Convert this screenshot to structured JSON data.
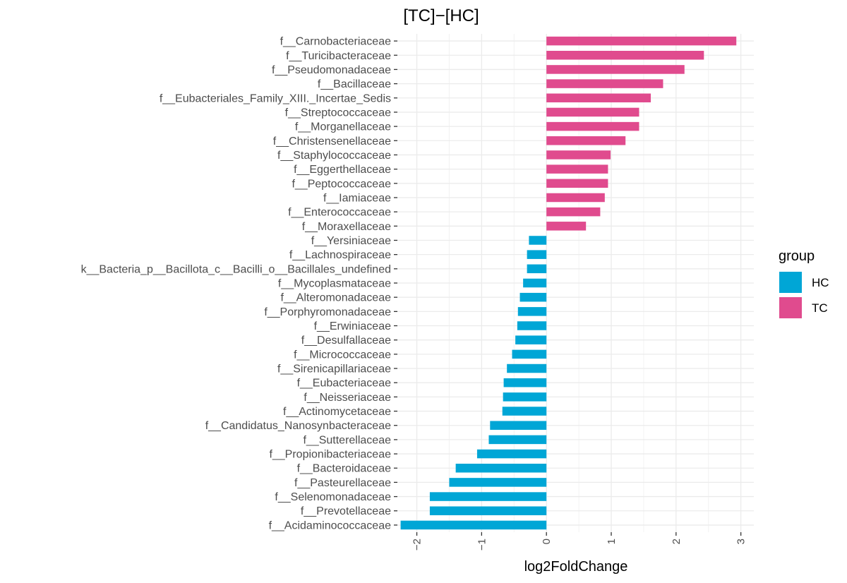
{
  "chart_data": {
    "type": "bar",
    "orientation": "horizontal",
    "title": "[TC]−[HC]",
    "xlabel": "log2FoldChange",
    "ylabel": "",
    "xlim": [
      -2.3,
      3.2
    ],
    "xticks": [
      -2,
      -1,
      0,
      1,
      2,
      3
    ],
    "xtick_labels": [
      "−2",
      "−1",
      "0",
      "1",
      "2",
      "3"
    ],
    "grid": true,
    "legend": {
      "title": "group",
      "placement": "right",
      "entries": [
        {
          "label": "HC",
          "color": "#00A6D6"
        },
        {
          "label": "TC",
          "color": "#E04B8E"
        }
      ]
    },
    "categories": [
      "f__Carnobacteriaceae",
      "f__Turicibacteraceae",
      "f__Pseudomonadaceae",
      "f__Bacillaceae",
      "f__Eubacteriales_Family_XIII._Incertae_Sedis",
      "f__Streptococcaceae",
      "f__Morganellaceae",
      "f__Christensenellaceae",
      "f__Staphylococcaceae",
      "f__Eggerthellaceae",
      "f__Peptococcaceae",
      "f__Iamiaceae",
      "f__Enterococcaceae",
      "f__Moraxellaceae",
      "f__Yersiniaceae",
      "f__Lachnospiraceae",
      "k__Bacteria_p__Bacillota_c__Bacilli_o__Bacillales_undefined",
      "f__Mycoplasmataceae",
      "f__Alteromonadaceae",
      "f__Porphyromonadaceae",
      "f__Erwiniaceae",
      "f__Desulfallaceae",
      "f__Micrococcaceae",
      "f__Sirenicapillariaceae",
      "f__Eubacteriaceae",
      "f__Neisseriaceae",
      "f__Actinomycetaceae",
      "f__Candidatus_Nanosynbacteraceae",
      "f__Sutterellaceae",
      "f__Propionibacteriaceae",
      "f__Bacteroidaceae",
      "f__Pasteurellaceae",
      "f__Selenomonadaceae",
      "f__Prevotellaceae",
      "f__Acidaminococcaceae"
    ],
    "values": [
      2.93,
      2.43,
      2.13,
      1.8,
      1.61,
      1.43,
      1.43,
      1.22,
      0.99,
      0.95,
      0.95,
      0.9,
      0.83,
      0.61,
      -0.27,
      -0.3,
      -0.3,
      -0.36,
      -0.41,
      -0.44,
      -0.45,
      -0.48,
      -0.53,
      -0.61,
      -0.66,
      -0.67,
      -0.68,
      -0.87,
      -0.89,
      -1.07,
      -1.4,
      -1.5,
      -1.8,
      -1.8,
      -2.25
    ],
    "groups": [
      "TC",
      "TC",
      "TC",
      "TC",
      "TC",
      "TC",
      "TC",
      "TC",
      "TC",
      "TC",
      "TC",
      "TC",
      "TC",
      "TC",
      "HC",
      "HC",
      "HC",
      "HC",
      "HC",
      "HC",
      "HC",
      "HC",
      "HC",
      "HC",
      "HC",
      "HC",
      "HC",
      "HC",
      "HC",
      "HC",
      "HC",
      "HC",
      "HC",
      "HC",
      "HC"
    ]
  }
}
